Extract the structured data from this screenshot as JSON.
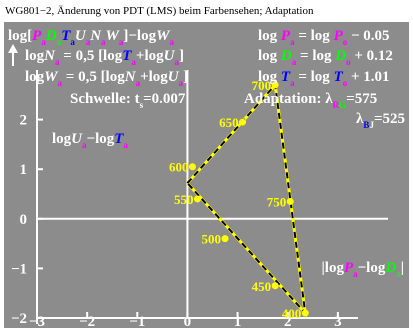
{
  "header": "WG801−2, Änderung von PDT (LMS) beim Farbensehen; Adaptation",
  "colors": {
    "panel": "#8c8c8c",
    "text": "#ffffff",
    "line": "#ffff00",
    "dash": "#000000",
    "magenta": "#ff00ff",
    "green": "#00ff00",
    "blue": "#0000ff"
  },
  "formulas": {
    "left_1": [
      {
        "t": "log[",
        "c": "text"
      },
      {
        "t": "P",
        "c": "magenta",
        "i": true
      },
      {
        "t": "a",
        "c": "magenta",
        "s": true
      },
      {
        "t": "D",
        "c": "green",
        "i": true
      },
      {
        "t": "a",
        "c": "green",
        "s": true
      },
      {
        "t": "T",
        "c": "blue",
        "i": true
      },
      {
        "t": "a",
        "c": "blue",
        "s": true
      },
      {
        "t": "U",
        "c": "text",
        "i": true
      },
      {
        "t": "a",
        "c": "magenta",
        "s": true
      },
      {
        "t": "N",
        "c": "text",
        "i": true
      },
      {
        "t": "a",
        "c": "magenta",
        "s": true
      },
      {
        "t": "W",
        "c": "text",
        "i": true
      },
      {
        "t": "a",
        "c": "magenta",
        "s": true
      },
      {
        "t": "]−log",
        "c": "text"
      },
      {
        "t": "W",
        "c": "text",
        "i": true
      },
      {
        "t": "a",
        "c": "magenta",
        "s": true
      }
    ],
    "left_2": [
      {
        "t": "log",
        "c": "text"
      },
      {
        "t": "N",
        "c": "text",
        "i": true
      },
      {
        "t": "a",
        "c": "magenta",
        "s": true
      },
      {
        "t": " = 0,5 [log",
        "c": "text"
      },
      {
        "t": "T",
        "c": "blue",
        "i": true
      },
      {
        "t": "a",
        "c": "magenta",
        "s": true
      },
      {
        "t": "+log",
        "c": "text"
      },
      {
        "t": "U",
        "c": "text",
        "i": true
      },
      {
        "t": "a",
        "c": "magenta",
        "s": true
      },
      {
        "t": "]",
        "c": "text"
      }
    ],
    "left_3": [
      {
        "t": "log",
        "c": "text"
      },
      {
        "t": "W",
        "c": "text",
        "i": true
      },
      {
        "t": "a",
        "c": "magenta",
        "s": true
      },
      {
        "t": " = 0,5 [log",
        "c": "text"
      },
      {
        "t": "N",
        "c": "text",
        "i": true
      },
      {
        "t": "a",
        "c": "magenta",
        "s": true
      },
      {
        "t": "+log",
        "c": "text"
      },
      {
        "t": "U",
        "c": "text",
        "i": true
      },
      {
        "t": "a",
        "c": "magenta",
        "s": true
      },
      {
        "t": "]",
        "c": "text"
      }
    ],
    "right_1": [
      {
        "t": "log ",
        "c": "text"
      },
      {
        "t": "P",
        "c": "magenta",
        "i": true
      },
      {
        "t": "a",
        "c": "magenta",
        "s": true
      },
      {
        "t": " = log ",
        "c": "text"
      },
      {
        "t": "P",
        "c": "magenta",
        "i": true
      },
      {
        "t": "o",
        "c": "magenta",
        "s": true
      },
      {
        "t": " − 0.05",
        "c": "text"
      }
    ],
    "right_2": [
      {
        "t": "log ",
        "c": "text"
      },
      {
        "t": "D",
        "c": "green",
        "i": true
      },
      {
        "t": "a",
        "c": "magenta",
        "s": true
      },
      {
        "t": " = log ",
        "c": "text"
      },
      {
        "t": "D",
        "c": "green",
        "i": true
      },
      {
        "t": "o",
        "c": "magenta",
        "s": true
      },
      {
        "t": " + 0.12",
        "c": "text"
      }
    ],
    "right_3": [
      {
        "t": "log ",
        "c": "text"
      },
      {
        "t": "T",
        "c": "blue",
        "i": true
      },
      {
        "t": "a",
        "c": "magenta",
        "s": true
      },
      {
        "t": " = log ",
        "c": "text"
      },
      {
        "t": "T",
        "c": "blue",
        "i": true
      },
      {
        "t": "o",
        "c": "magenta",
        "s": true
      },
      {
        "t": " + 1.01",
        "c": "text"
      }
    ],
    "threshold": [
      {
        "t": "Schwelle: t",
        "c": "text"
      },
      {
        "t": "s",
        "c": "text",
        "s": true
      },
      {
        "t": "=0.007",
        "c": "text"
      }
    ],
    "adaptation_1": [
      {
        "t": "Adaptation: λ",
        "c": "text"
      },
      {
        "t": "R",
        "c": "magenta",
        "s": true
      },
      {
        "t": "G",
        "c": "green",
        "s": true
      },
      {
        "t": "=575",
        "c": "text"
      }
    ],
    "adaptation_2": [
      {
        "t": "λ",
        "c": "text"
      },
      {
        "t": "B",
        "c": "blue",
        "s": true
      },
      {
        "t": "J",
        "c": "text",
        "s": true
      },
      {
        "t": "=525",
        "c": "text"
      }
    ],
    "ylabel": [
      {
        "t": "log",
        "c": "text"
      },
      {
        "t": "U",
        "c": "text",
        "i": true
      },
      {
        "t": "a",
        "c": "magenta",
        "s": true
      },
      {
        "t": "−log",
        "c": "text"
      },
      {
        "t": "T",
        "c": "blue",
        "i": true
      },
      {
        "t": "a",
        "c": "magenta",
        "s": true
      }
    ],
    "xlabel": [
      {
        "t": "|log",
        "c": "text"
      },
      {
        "t": "P",
        "c": "magenta",
        "i": true
      },
      {
        "t": "a",
        "c": "magenta",
        "s": true
      },
      {
        "t": "−log",
        "c": "text"
      },
      {
        "t": "D",
        "c": "green",
        "i": true
      },
      {
        "t": "a",
        "c": "green",
        "s": true
      },
      {
        "t": "|",
        "c": "text"
      }
    ]
  },
  "chart_data": {
    "type": "line",
    "xlim": [
      -3,
      4
    ],
    "ylim": [
      -2,
      3
    ],
    "xticks": [
      -3,
      -2,
      -1,
      0,
      1,
      2,
      3
    ],
    "yticks": [
      -2,
      -1,
      0,
      1,
      2
    ],
    "grid": false,
    "series": [
      {
        "x": [
          0.0,
          1.75,
          2.35,
          0.0
        ],
        "y": [
          0.72,
          2.7,
          -1.9,
          0.72
        ]
      }
    ],
    "points": [
      {
        "label": "700",
        "x": 1.75,
        "y": 2.7
      },
      {
        "label": "650",
        "x": 1.1,
        "y": 1.95
      },
      {
        "label": "600",
        "x": 0.1,
        "y": 1.05
      },
      {
        "label": "550",
        "x": 0.2,
        "y": 0.4
      },
      {
        "label": "750",
        "x": 2.05,
        "y": 0.35
      },
      {
        "label": "500",
        "x": 0.75,
        "y": -0.4
      },
      {
        "label": "450",
        "x": 1.75,
        "y": -1.35
      },
      {
        "label": "400",
        "x": 2.35,
        "y": -1.9
      }
    ]
  }
}
